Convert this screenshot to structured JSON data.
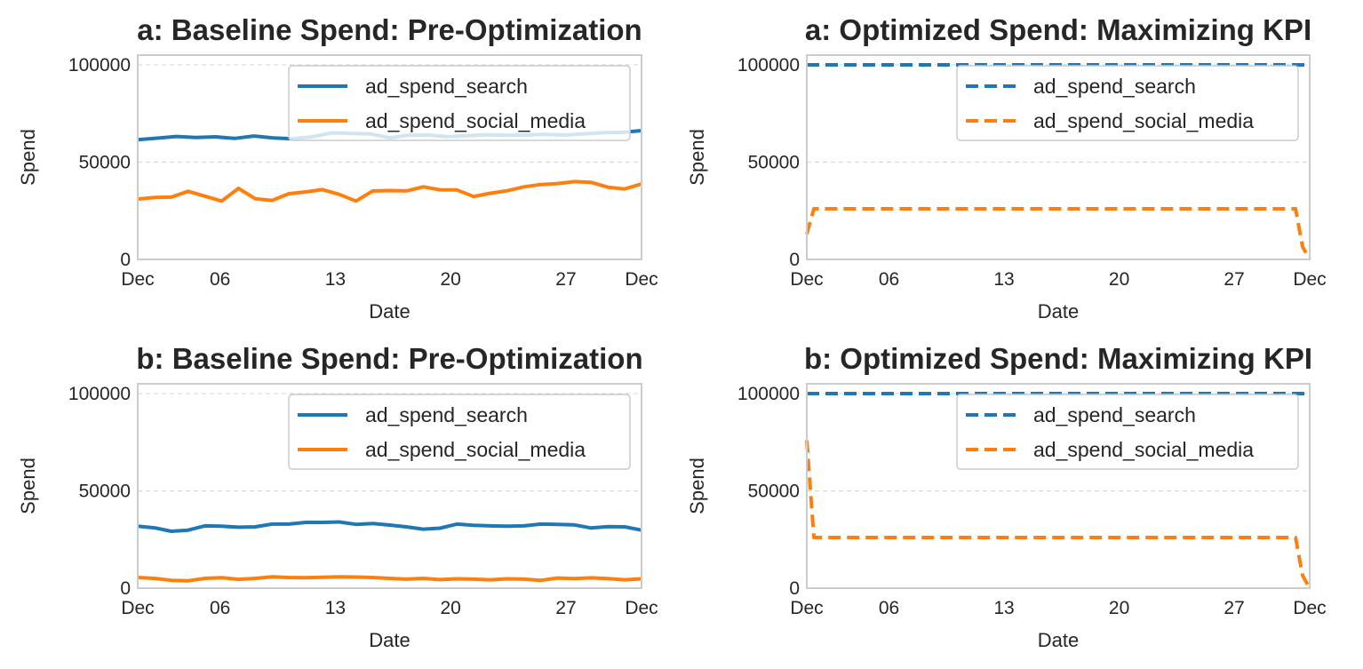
{
  "colors": {
    "search": "#1f77b4",
    "social": "#ff7f0e",
    "grid": "#d9d9d9",
    "axes_edge": "#cccccc",
    "text": "#262626",
    "background": "#ffffff"
  },
  "chart_data": [
    {
      "type": "line",
      "title": "a: Baseline Spend: Pre-Optimization",
      "xlabel": "Date",
      "ylabel": "Spend",
      "ylim": [
        0,
        105000
      ],
      "yticks": [
        0,
        50000,
        100000
      ],
      "xlim": [
        0,
        26
      ],
      "xticks": [
        {
          "x": 0,
          "label": "Dec"
        },
        {
          "x": 4.25,
          "label": "06"
        },
        {
          "x": 10.2,
          "label": "13"
        },
        {
          "x": 16.15,
          "label": "20"
        },
        {
          "x": 22.1,
          "label": "27"
        },
        {
          "x": 26,
          "label": "Dec"
        }
      ],
      "grid": "y, dashed",
      "legend": "top-right",
      "line_style": "solid",
      "series": [
        {
          "name": "ad_spend_search",
          "color": "#1f77b4",
          "values": [
            61500,
            62300,
            63200,
            62700,
            63000,
            62200,
            63400,
            62400,
            62000,
            63000,
            65000,
            64800,
            64500,
            62500,
            63800,
            63900,
            63100,
            63600,
            64100,
            63800,
            63900,
            64300,
            63900,
            64500,
            65100,
            65300,
            66200
          ]
        },
        {
          "name": "ad_spend_social_media",
          "color": "#ff7f0e",
          "values": [
            31000,
            31800,
            32000,
            35000,
            32500,
            30000,
            36500,
            31200,
            30300,
            33800,
            34700,
            35900,
            33400,
            30000,
            35200,
            35400,
            35200,
            37300,
            35800,
            35700,
            32300,
            34000,
            35300,
            37300,
            38500,
            39000,
            40000,
            39600,
            37100,
            36200,
            38800
          ]
        }
      ]
    },
    {
      "type": "line",
      "title": "a: Optimized Spend: Maximizing KPI",
      "xlabel": "Date",
      "ylabel": "Spend",
      "ylim": [
        0,
        105000
      ],
      "yticks": [
        0,
        50000,
        100000
      ],
      "xlim": [
        0,
        26
      ],
      "xticks": [
        {
          "x": 0,
          "label": "Dec"
        },
        {
          "x": 4.25,
          "label": "06"
        },
        {
          "x": 10.2,
          "label": "13"
        },
        {
          "x": 16.15,
          "label": "20"
        },
        {
          "x": 22.1,
          "label": "27"
        },
        {
          "x": 26,
          "label": "Dec"
        }
      ],
      "grid": "y, dashed",
      "legend": "top-right",
      "line_style": "dashed",
      "series": [
        {
          "name": "ad_spend_search",
          "color": "#1f77b4",
          "values": [
            100000,
            100000,
            100000,
            100000,
            100000,
            100000,
            100000,
            100000,
            100000,
            100000,
            100000,
            100000,
            100000,
            100000,
            100000,
            100000,
            100000,
            100000,
            100000,
            100000,
            100000,
            100000,
            100000,
            100000,
            100000,
            100000,
            100000
          ]
        },
        {
          "name": "ad_spend_social_media",
          "color": "#ff7f0e",
          "values": [
            13000,
            26000,
            26000,
            26000,
            26000,
            26000,
            26000,
            26000,
            26000,
            26000,
            26000,
            26000,
            26000,
            26000,
            26000,
            26000,
            26000,
            26000,
            26000,
            26000,
            26000,
            26000,
            26000,
            26000,
            26000,
            26000,
            26000,
            26000,
            26000,
            26000,
            26000,
            26000,
            26000,
            26000,
            26000,
            26000,
            26000,
            26000,
            26000,
            26000,
            26000,
            26000,
            26000,
            26000,
            26000,
            26000,
            26000,
            26000,
            26000,
            26000,
            26000,
            26000,
            26000,
            26000,
            26000,
            26000,
            26000,
            26000,
            26000,
            26000,
            26000,
            26000,
            26000,
            26000,
            26000,
            26000,
            26000,
            26000,
            26000,
            26000,
            6500,
            0
          ]
        }
      ]
    },
    {
      "type": "line",
      "title": "b: Baseline Spend: Pre-Optimization",
      "xlabel": "Date",
      "ylabel": "Spend",
      "ylim": [
        0,
        105000
      ],
      "yticks": [
        0,
        50000,
        100000
      ],
      "xlim": [
        0,
        26
      ],
      "xticks": [
        {
          "x": 0,
          "label": "Dec"
        },
        {
          "x": 4.25,
          "label": "06"
        },
        {
          "x": 10.2,
          "label": "13"
        },
        {
          "x": 16.15,
          "label": "20"
        },
        {
          "x": 22.1,
          "label": "27"
        },
        {
          "x": 26,
          "label": "Dec"
        }
      ],
      "grid": "y, dashed",
      "legend": "top-right",
      "line_style": "solid",
      "series": [
        {
          "name": "ad_spend_search",
          "color": "#1f77b4",
          "values": [
            31800,
            31000,
            29200,
            29800,
            32000,
            31800,
            31300,
            31500,
            32900,
            32900,
            33800,
            33800,
            34000,
            32800,
            33200,
            32400,
            31500,
            30300,
            30800,
            32900,
            32300,
            32000,
            31800,
            32000,
            32900,
            32800,
            32500,
            30900,
            31600,
            31500,
            29800
          ]
        },
        {
          "name": "ad_spend_social_media",
          "color": "#ff7f0e",
          "values": [
            5500,
            5000,
            4000,
            3800,
            5000,
            5400,
            4500,
            5000,
            5800,
            5500,
            5400,
            5600,
            5800,
            5700,
            5500,
            5000,
            4600,
            5000,
            4400,
            4800,
            4600,
            4300,
            4800,
            4600,
            4000,
            5200,
            4900,
            5300,
            4900,
            4300,
            4800
          ]
        }
      ]
    },
    {
      "type": "line",
      "title": "b: Optimized Spend: Maximizing KPI",
      "xlabel": "Date",
      "ylabel": "Spend",
      "ylim": [
        0,
        105000
      ],
      "yticks": [
        0,
        50000,
        100000
      ],
      "xlim": [
        0,
        26
      ],
      "xticks": [
        {
          "x": 0,
          "label": "Dec"
        },
        {
          "x": 4.25,
          "label": "06"
        },
        {
          "x": 10.2,
          "label": "13"
        },
        {
          "x": 16.15,
          "label": "20"
        },
        {
          "x": 22.1,
          "label": "27"
        },
        {
          "x": 26,
          "label": "Dec"
        }
      ],
      "grid": "y, dashed",
      "legend": "top-right",
      "line_style": "dashed",
      "series": [
        {
          "name": "ad_spend_search",
          "color": "#1f77b4",
          "values": [
            100000,
            100000,
            100000,
            100000,
            100000,
            100000,
            100000,
            100000,
            100000,
            100000,
            100000,
            100000,
            100000,
            100000,
            100000,
            100000,
            100000,
            100000,
            100000,
            100000,
            100000,
            100000,
            100000,
            100000,
            100000,
            100000,
            100000
          ]
        },
        {
          "name": "ad_spend_social_media",
          "color": "#ff7f0e",
          "values": [
            76000,
            26000,
            26000,
            26000,
            26000,
            26000,
            26000,
            26000,
            26000,
            26000,
            26000,
            26000,
            26000,
            26000,
            26000,
            26000,
            26000,
            26000,
            26000,
            26000,
            26000,
            26000,
            26000,
            26000,
            26000,
            26000,
            26000,
            26000,
            26000,
            26000,
            26000,
            26000,
            26000,
            26000,
            26000,
            26000,
            26000,
            26000,
            26000,
            26000,
            26000,
            26000,
            26000,
            26000,
            26000,
            26000,
            26000,
            26000,
            26000,
            26000,
            26000,
            26000,
            26000,
            26000,
            26000,
            26000,
            26000,
            26000,
            26000,
            26000,
            26000,
            26000,
            26000,
            26000,
            26000,
            26000,
            26000,
            26000,
            26000,
            26000,
            6500,
            0
          ]
        }
      ]
    }
  ]
}
